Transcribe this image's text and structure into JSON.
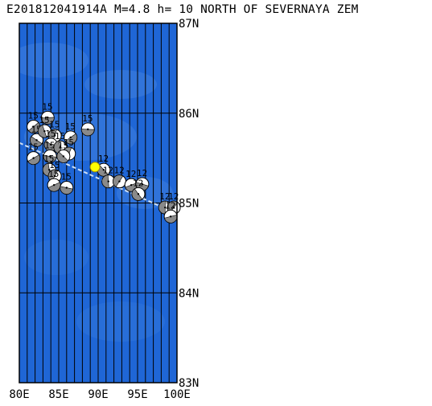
{
  "title": "E201812041914A M=4.8 h= 10 NORTH OF SEVERNAYA ZEM",
  "map": {
    "lon_range": [
      80,
      100
    ],
    "lat_range": [
      83,
      87
    ],
    "lon_ticks": [
      {
        "value": 80,
        "label": "80E"
      },
      {
        "value": 85,
        "label": "85E"
      },
      {
        "value": 90,
        "label": "90E"
      },
      {
        "value": 95,
        "label": "95E"
      },
      {
        "value": 100,
        "label": "100E"
      }
    ],
    "lat_ticks": [
      {
        "value": 87,
        "label": "87N"
      },
      {
        "value": 86,
        "label": "86N"
      },
      {
        "value": 85,
        "label": "85N"
      },
      {
        "value": 84,
        "label": "84N"
      },
      {
        "value": 83,
        "label": "83N"
      }
    ],
    "meridian_step_deg": 1,
    "colors": {
      "ocean": "#1f66d6",
      "ocean_light": "#4a86e0",
      "grid": "#000000",
      "ridge": "#cfe0f4",
      "epicenter": "#ffff00",
      "beachball_dark": "#8a8a8a"
    },
    "ridge_line": [
      [
        80.0,
        85.67
      ],
      [
        100.0,
        84.88
      ]
    ],
    "main_event": {
      "lon": 89.6,
      "lat": 85.4,
      "label": "E201812041914A"
    },
    "mechanisms": [
      {
        "lon": 81.8,
        "lat": 85.85,
        "label": "15"
      },
      {
        "lon": 83.6,
        "lat": 85.95,
        "label": "15"
      },
      {
        "lon": 82.2,
        "lat": 85.7,
        "label": "15"
      },
      {
        "lon": 83.2,
        "lat": 85.8,
        "label": "15"
      },
      {
        "lon": 84.5,
        "lat": 85.75,
        "label": "15"
      },
      {
        "lon": 86.5,
        "lat": 85.73,
        "label": "15"
      },
      {
        "lon": 88.7,
        "lat": 85.82,
        "label": "15"
      },
      {
        "lon": 84.0,
        "lat": 85.65,
        "label": "15"
      },
      {
        "lon": 85.2,
        "lat": 85.62,
        "label": "15"
      },
      {
        "lon": 86.3,
        "lat": 85.55,
        "label": "15"
      },
      {
        "lon": 81.8,
        "lat": 85.5,
        "label": "15"
      },
      {
        "lon": 83.9,
        "lat": 85.52,
        "label": "15"
      },
      {
        "lon": 85.6,
        "lat": 85.52,
        "label": "15"
      },
      {
        "lon": 83.8,
        "lat": 85.37,
        "label": "15"
      },
      {
        "lon": 84.5,
        "lat": 85.3,
        "label": "15"
      },
      {
        "lon": 84.4,
        "lat": 85.2,
        "label": "15"
      },
      {
        "lon": 86.0,
        "lat": 85.17,
        "label": "15"
      },
      {
        "lon": 90.7,
        "lat": 85.37,
        "label": "12"
      },
      {
        "lon": 91.3,
        "lat": 85.24,
        "label": "12"
      },
      {
        "lon": 92.7,
        "lat": 85.24,
        "label": "12"
      },
      {
        "lon": 94.2,
        "lat": 85.2,
        "label": "12"
      },
      {
        "lon": 95.6,
        "lat": 85.21,
        "label": "12"
      },
      {
        "lon": 95.1,
        "lat": 85.1,
        "label": "12"
      },
      {
        "lon": 98.5,
        "lat": 84.95,
        "label": "12"
      },
      {
        "lon": 99.6,
        "lat": 84.95,
        "label": "12"
      },
      {
        "lon": 99.2,
        "lat": 84.85,
        "label": "12"
      }
    ]
  }
}
